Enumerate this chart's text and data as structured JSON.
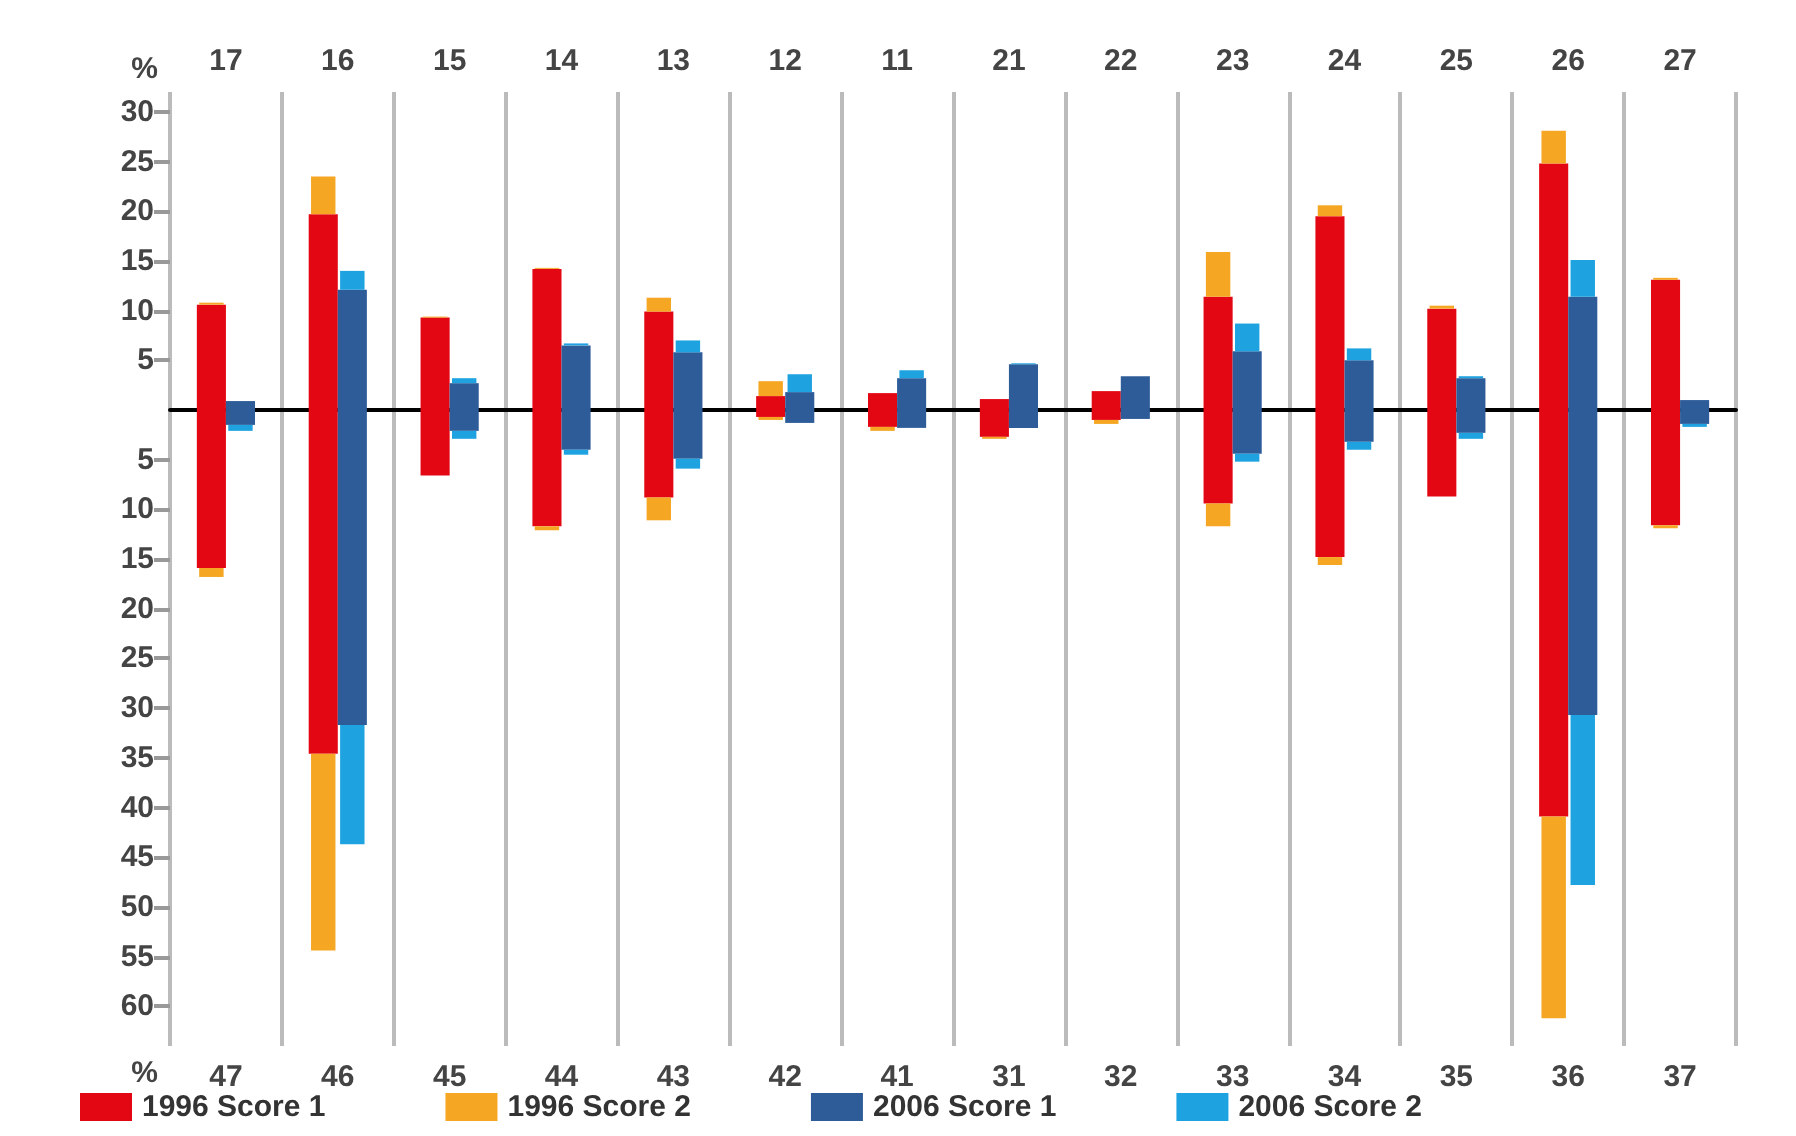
{
  "chart_data": [
    {
      "type": "bar",
      "ylabel": "%",
      "categories": [
        "17",
        "16",
        "15",
        "14",
        "13",
        "12",
        "11",
        "21",
        "22",
        "23",
        "24",
        "25",
        "26",
        "27"
      ],
      "ylim": [
        0,
        32
      ],
      "yticks": [
        5,
        10,
        15,
        20,
        25,
        30
      ],
      "grid": "x",
      "legend": false,
      "series": [
        {
          "color": "#e30613",
          "values": [
            10.6,
            19.7,
            9.3,
            14.2,
            9.9,
            1.4,
            1.7,
            1.1,
            1.9,
            11.4,
            19.5,
            10.2,
            24.8,
            13.1
          ]
        },
        {
          "color": "#f5a623",
          "base": [
            10.6,
            19.7,
            9.3,
            14.2,
            9.9,
            1.4,
            null,
            null,
            null,
            11.4,
            19.5,
            10.2,
            24.8,
            13.1
          ],
          "values": [
            0.2,
            3.8,
            0.1,
            0.1,
            1.4,
            1.5,
            null,
            null,
            null,
            4.5,
            1.1,
            0.3,
            3.3,
            0.2
          ]
        },
        {
          "color": "#2e5c99",
          "values": [
            0.9,
            12.1,
            2.7,
            6.5,
            5.8,
            1.8,
            3.2,
            4.6,
            3.4,
            5.9,
            5.0,
            3.2,
            11.4,
            1.0
          ]
        },
        {
          "color": "#1fa3e0",
          "base": [
            null,
            12.1,
            2.7,
            6.5,
            5.8,
            1.8,
            3.2,
            4.6,
            null,
            5.9,
            5.0,
            3.2,
            11.4,
            null
          ],
          "values": [
            null,
            1.9,
            0.5,
            0.2,
            1.2,
            1.8,
            0.8,
            0.1,
            null,
            2.8,
            1.2,
            0.2,
            3.7,
            null
          ]
        }
      ]
    },
    {
      "type": "bar",
      "ylabel": "%",
      "categories": [
        "47",
        "46",
        "45",
        "44",
        "43",
        "42",
        "41",
        "31",
        "32",
        "33",
        "34",
        "35",
        "36",
        "37"
      ],
      "ylim": [
        64,
        0
      ],
      "yticks": [
        5,
        10,
        15,
        20,
        25,
        30,
        35,
        40,
        45,
        50,
        55,
        60
      ],
      "grid": "x",
      "legend": "bottom",
      "series": [
        {
          "name": "1996 Score 1",
          "color": "#e30613",
          "values": [
            15.9,
            34.6,
            6.6,
            11.7,
            8.8,
            0.7,
            1.7,
            2.7,
            1.0,
            9.4,
            14.8,
            8.7,
            40.9,
            11.6
          ]
        },
        {
          "name": "1996 Score 2",
          "color": "#f5a623",
          "base": [
            15.9,
            34.6,
            null,
            11.7,
            8.8,
            0.7,
            1.7,
            2.7,
            1.0,
            9.4,
            14.8,
            null,
            40.9,
            11.6
          ],
          "values": [
            0.9,
            19.8,
            null,
            0.4,
            2.3,
            0.3,
            0.4,
            0.2,
            0.4,
            2.3,
            0.8,
            null,
            20.3,
            0.3
          ]
        },
        {
          "name": "2006 Score 1",
          "color": "#2e5c99",
          "values": [
            1.5,
            31.7,
            2.1,
            4.0,
            4.9,
            1.3,
            1.8,
            1.8,
            0.9,
            4.4,
            3.2,
            2.3,
            30.7,
            1.4
          ]
        },
        {
          "name": "2006 Score 2",
          "color": "#1fa3e0",
          "base": [
            1.5,
            31.7,
            2.1,
            4.0,
            4.9,
            null,
            null,
            null,
            null,
            4.4,
            3.2,
            2.3,
            30.7,
            1.4
          ],
          "values": [
            0.6,
            12.0,
            0.8,
            0.5,
            1.0,
            null,
            null,
            null,
            null,
            0.8,
            0.8,
            0.6,
            17.1,
            0.3
          ]
        }
      ]
    }
  ]
}
